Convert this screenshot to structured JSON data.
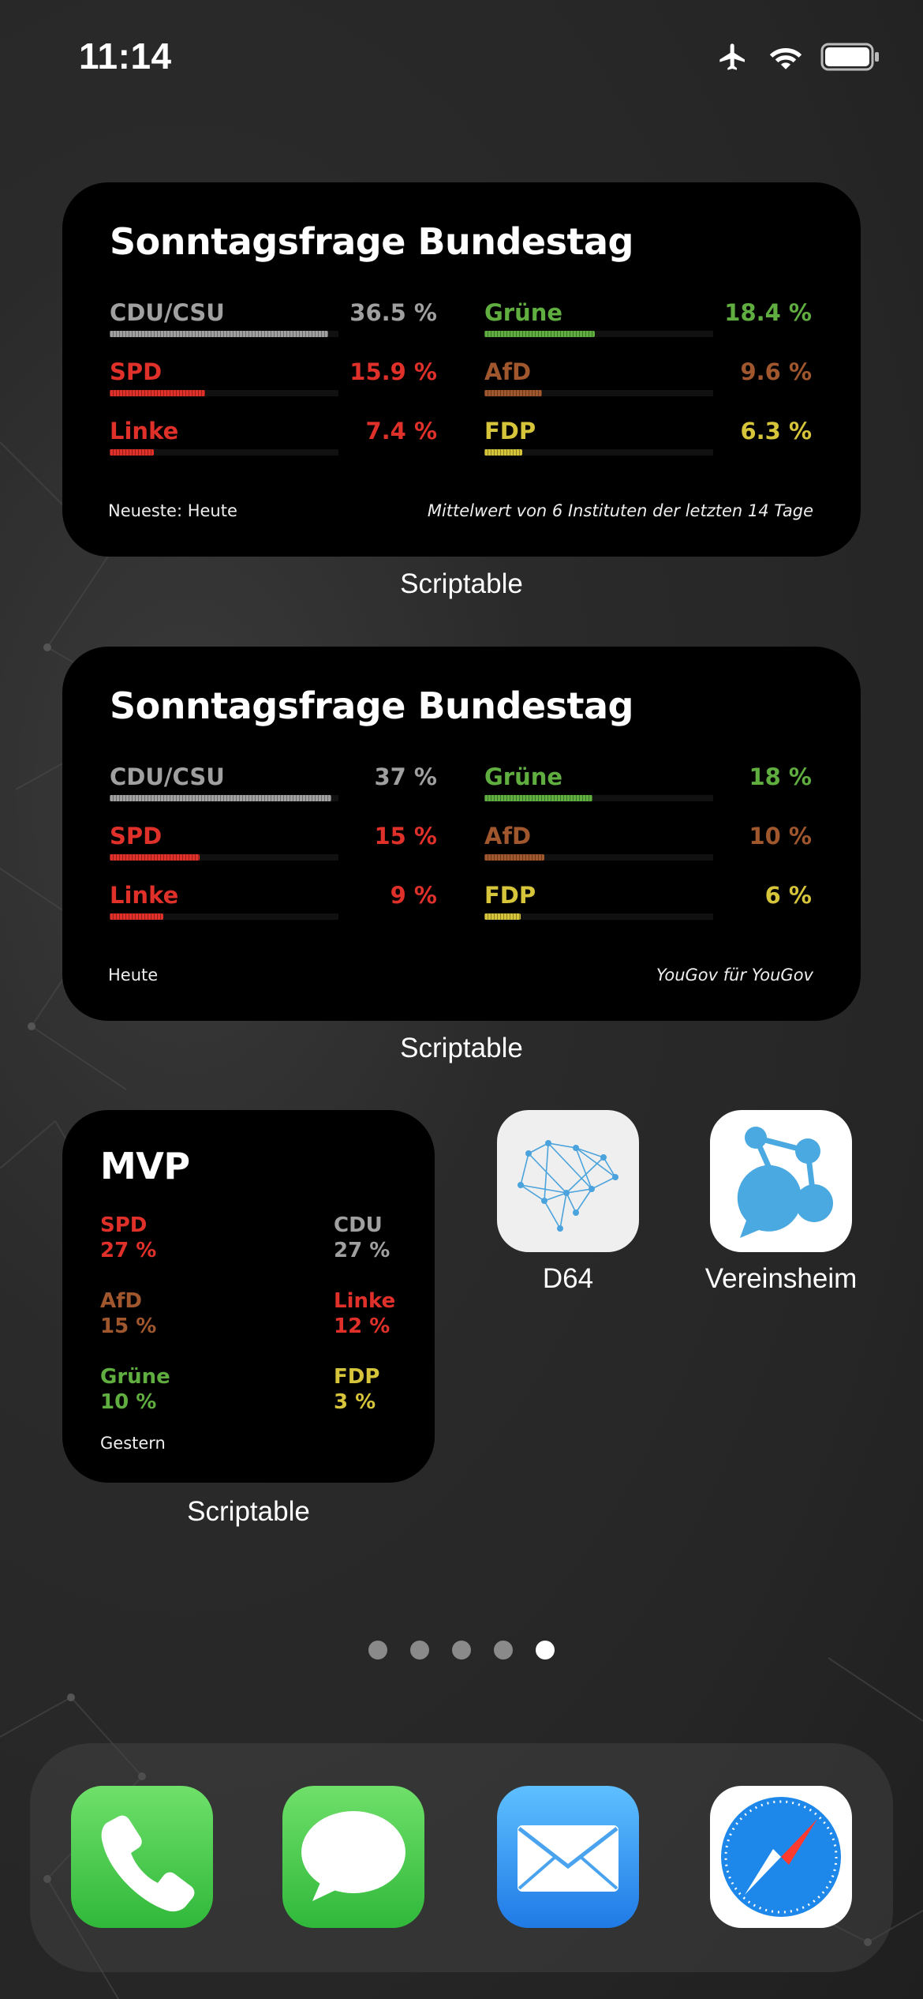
{
  "status_bar": {
    "time": "11:14",
    "airplane_icon": "airplane-icon",
    "wifi_icon": "wifi-icon",
    "battery_icon": "battery-icon"
  },
  "widget1": {
    "title": "Sonntagsfrage Bundestag",
    "parties": [
      {
        "name": "CDU/CSU",
        "value": "36.5 %",
        "color": "#a0a0a0",
        "share": 0.365
      },
      {
        "name": "Grüne",
        "value": "18.4 %",
        "color": "#5fae3f",
        "share": 0.184
      },
      {
        "name": "SPD",
        "value": "15.9 %",
        "color": "#e0302a",
        "share": 0.159
      },
      {
        "name": "AfD",
        "value": "9.6 %",
        "color": "#a0572d",
        "share": 0.096
      },
      {
        "name": "Linke",
        "value": "7.4 %",
        "color": "#e0302a",
        "share": 0.074
      },
      {
        "name": "FDP",
        "value": "6.3 %",
        "color": "#d6c53a",
        "share": 0.063
      }
    ],
    "footer_left": "Neueste: Heute",
    "footer_right": "Mittelwert von 6 Instituten der letzten 14 Tage",
    "label": "Scriptable"
  },
  "widget2": {
    "title": "Sonntagsfrage Bundestag",
    "parties": [
      {
        "name": "CDU/CSU",
        "value": "37 %",
        "color": "#a0a0a0",
        "share": 0.37
      },
      {
        "name": "Grüne",
        "value": "18 %",
        "color": "#5fae3f",
        "share": 0.18
      },
      {
        "name": "SPD",
        "value": "15 %",
        "color": "#e0302a",
        "share": 0.15
      },
      {
        "name": "AfD",
        "value": "10 %",
        "color": "#a0572d",
        "share": 0.1
      },
      {
        "name": "Linke",
        "value": "9 %",
        "color": "#e0302a",
        "share": 0.09
      },
      {
        "name": "FDP",
        "value": "6 %",
        "color": "#d6c53a",
        "share": 0.06
      }
    ],
    "footer_left": "Heute",
    "footer_right": "YouGov für YouGov",
    "label": "Scriptable"
  },
  "widget3": {
    "title": "MVP",
    "parties": [
      {
        "name": "SPD",
        "value": "27 %",
        "color": "#e0302a"
      },
      {
        "name": "CDU",
        "value": "27 %",
        "color": "#a0a0a0"
      },
      {
        "name": "AfD",
        "value": "15 %",
        "color": "#a0572d"
      },
      {
        "name": "Linke",
        "value": "12 %",
        "color": "#e0302a"
      },
      {
        "name": "Grüne",
        "value": "10 %",
        "color": "#5fae3f"
      },
      {
        "name": "FDP",
        "value": "3 %",
        "color": "#d6c53a"
      }
    ],
    "footer": "Gestern",
    "label": "Scriptable"
  },
  "apps": [
    {
      "label": "D64",
      "icon": "d64-network-icon"
    },
    {
      "label": "Vereinsheim",
      "icon": "vereinsheim-chat-icon"
    }
  ],
  "page_dots": {
    "count": 5,
    "active_index": 4
  },
  "dock": [
    {
      "name": "Phone",
      "icon": "phone-icon"
    },
    {
      "name": "Messages",
      "icon": "messages-icon"
    },
    {
      "name": "Mail",
      "icon": "mail-icon"
    },
    {
      "name": "Safari",
      "icon": "safari-icon"
    }
  ]
}
